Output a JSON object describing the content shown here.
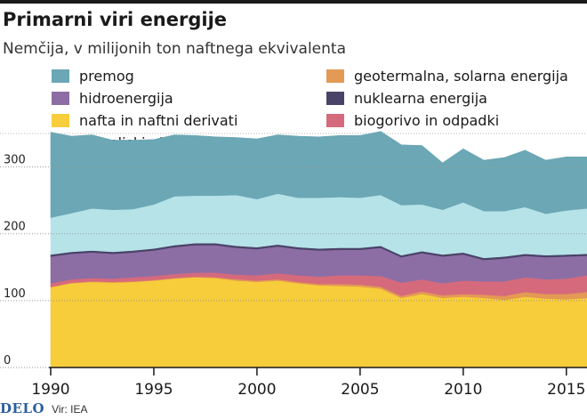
{
  "title": "Primarni viri energije",
  "subtitle": "Nemčija, v milijonih ton naftnega ekvivalenta",
  "source": "Vir: IEA",
  "logo": "DELO",
  "chart_data": {
    "type": "area",
    "stacked": true,
    "title": "Primarni viri energije",
    "subtitle": "Nemčija, v milijonih ton naftnega ekvivalenta",
    "xlabel": "",
    "ylabel": "",
    "xlim": [
      1990,
      2016
    ],
    "ylim": [
      0,
      350
    ],
    "xticks": [
      1990,
      1995,
      2000,
      2005,
      2010,
      2015
    ],
    "yticks": [
      0,
      100,
      200,
      300
    ],
    "x": [
      1990,
      1991,
      1992,
      1993,
      1994,
      1995,
      1996,
      1997,
      1998,
      1999,
      2000,
      2001,
      2002,
      2003,
      2004,
      2005,
      2006,
      2007,
      2008,
      2009,
      2010,
      2011,
      2012,
      2013,
      2014,
      2015,
      2016
    ],
    "series": [
      {
        "key": "nafta",
        "name": "nafta in naftni derivati",
        "color": "#f7cd3b",
        "values": [
          120,
          126,
          128,
          127,
          128,
          130,
          133,
          135,
          134,
          130,
          128,
          130,
          126,
          123,
          122,
          121,
          118,
          104,
          110,
          104,
          106,
          104,
          101,
          106,
          103,
          102,
          104
        ]
      },
      {
        "key": "geo",
        "name": "geotermalna, solarna energija",
        "color": "#e39a55",
        "values": [
          1,
          1,
          1,
          1,
          1,
          1,
          1,
          1,
          1,
          2,
          2,
          2,
          2,
          2,
          3,
          3,
          3,
          3,
          4,
          4,
          4,
          5,
          6,
          7,
          7,
          8,
          9
        ]
      },
      {
        "key": "bio",
        "name": "biogorivo in odpadki",
        "color": "#d56a7c",
        "values": [
          5,
          5,
          5,
          5,
          6,
          6,
          6,
          6,
          7,
          7,
          8,
          9,
          10,
          11,
          13,
          14,
          16,
          20,
          18,
          18,
          20,
          20,
          22,
          22,
          22,
          23,
          25
        ]
      },
      {
        "key": "hidro",
        "name": "hidroenergija",
        "color": "#8c6ea5",
        "values": [
          40,
          38,
          38,
          37,
          37,
          38,
          40,
          41,
          41,
          40,
          39,
          40,
          39,
          39,
          38,
          38,
          42,
          38,
          39,
          40,
          39,
          32,
          34,
          32,
          33,
          33,
          29
        ]
      },
      {
        "key": "nuk",
        "name": "nuklearna energija",
        "color": "#4a4368",
        "values": [
          3,
          3,
          3,
          3,
          3,
          3,
          3,
          3,
          3,
          3,
          3,
          3,
          3,
          3,
          3,
          3,
          3,
          3,
          3,
          3,
          3,
          3,
          3,
          3,
          3,
          3,
          3
        ]
      },
      {
        "key": "plin",
        "name": "zemeljski plin",
        "color": "#b6e3e8",
        "values": [
          55,
          58,
          63,
          63,
          62,
          66,
          73,
          71,
          71,
          76,
          72,
          76,
          74,
          76,
          76,
          75,
          76,
          75,
          70,
          67,
          75,
          70,
          68,
          70,
          62,
          66,
          68
        ]
      },
      {
        "key": "premog",
        "name": "premog",
        "color": "#6ba7b4",
        "values": [
          128,
          115,
          110,
          104,
          103,
          97,
          92,
          90,
          88,
          86,
          90,
          88,
          92,
          91,
          92,
          93,
          95,
          90,
          88,
          70,
          80,
          76,
          80,
          85,
          80,
          80,
          77
        ]
      }
    ]
  },
  "legend_left": [
    {
      "label": "premog",
      "color": "#6ba7b4"
    },
    {
      "label": "hidroenergija",
      "color": "#8c6ea5"
    },
    {
      "label": "nafta in naftni derivati",
      "color": "#f7cd3b"
    },
    {
      "label": "zemeljski plin",
      "color": "#b6e3e8"
    }
  ],
  "legend_right": [
    {
      "label": "geotermalna, solarna energija",
      "color": "#e39a55"
    },
    {
      "label": "nuklearna energija",
      "color": "#4a4368"
    },
    {
      "label": "biogorivo in odpadki",
      "color": "#d56a7c"
    }
  ]
}
